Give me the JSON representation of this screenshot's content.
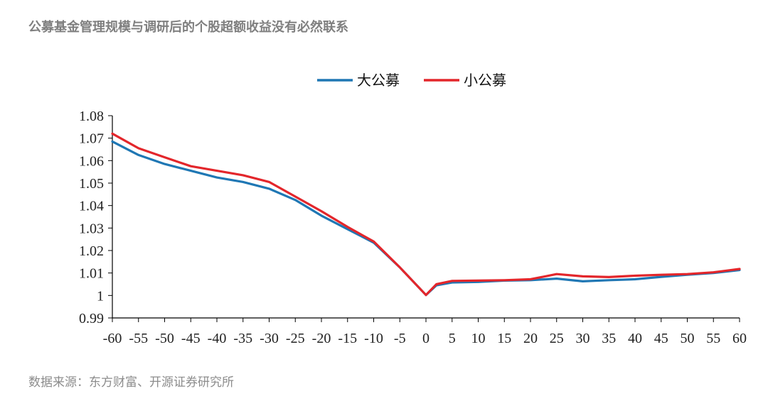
{
  "page": {
    "title": "公募基金管理规模与调研后的个股超额收益没有必然联系",
    "source": "数据来源：东方财富、开源证券研究所"
  },
  "colors": {
    "big_fund": "#1f77b4",
    "small_fund": "#e3262b",
    "axis": "#000000"
  },
  "chart_data": {
    "type": "line",
    "title": "",
    "xlabel": "",
    "ylabel": "",
    "xlim": [
      -60,
      60
    ],
    "ylim": [
      0.99,
      1.08
    ],
    "xticks": [
      -60,
      -55,
      -50,
      -45,
      -40,
      -35,
      -30,
      -25,
      -20,
      -15,
      -10,
      -5,
      0,
      5,
      10,
      15,
      20,
      25,
      30,
      35,
      40,
      45,
      50,
      55,
      60
    ],
    "xtick_labels": [
      "-60",
      "-55",
      "-50",
      "-45",
      "-40",
      "-35",
      "-30",
      "-25",
      "-20",
      "-15",
      "-10",
      "-5",
      "0",
      "5",
      "10",
      "15",
      "20",
      "25",
      "30",
      "35",
      "40",
      "45",
      "50",
      "55",
      "60"
    ],
    "yticks": [
      0.99,
      1,
      1.01,
      1.02,
      1.03,
      1.04,
      1.05,
      1.06,
      1.07,
      1.08
    ],
    "ytick_labels": [
      "0.99",
      "1",
      "1.01",
      "1.02",
      "1.03",
      "1.04",
      "1.05",
      "1.06",
      "1.07",
      "1.08"
    ],
    "legend_position": "top-center",
    "x": [
      -60,
      -55,
      -50,
      -45,
      -40,
      -35,
      -30,
      -25,
      -20,
      -15,
      -10,
      -5,
      0,
      2,
      5,
      10,
      15,
      20,
      25,
      30,
      35,
      40,
      45,
      50,
      55,
      60
    ],
    "series": [
      {
        "name": "大公募",
        "values": [
          1.0685,
          1.0625,
          1.0585,
          1.0555,
          1.0525,
          1.0505,
          1.0475,
          1.0425,
          1.0355,
          1.0295,
          1.0235,
          1.0125,
          1.0002,
          1.0045,
          1.0058,
          1.006,
          1.0066,
          1.0068,
          1.0075,
          1.0063,
          1.0068,
          1.0072,
          1.0083,
          1.0092,
          1.01,
          1.0113
        ]
      },
      {
        "name": "小公募",
        "values": [
          1.072,
          1.0655,
          1.0615,
          1.0575,
          1.0555,
          1.0535,
          1.0505,
          1.044,
          1.0375,
          1.0305,
          1.024,
          1.0125,
          1.0002,
          1.005,
          1.0065,
          1.0066,
          1.0068,
          1.0072,
          1.0095,
          1.0085,
          1.0082,
          1.0088,
          1.0092,
          1.0095,
          1.0103,
          1.0118
        ]
      }
    ]
  }
}
